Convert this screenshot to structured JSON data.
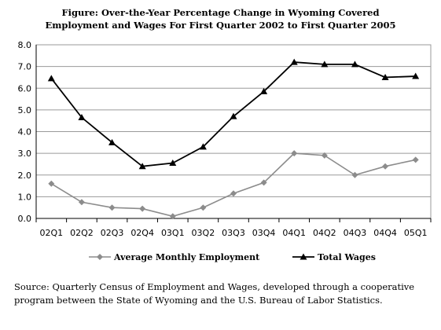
{
  "title_lines": [
    "Figure: Over-the-Year Percentage Change in Wyoming Covered",
    "Employment and Wages For First Quarter 2002 to First Quarter 2005"
  ],
  "source_text": "Source: Quarterly Census of Employment and Wages, developed through a cooperative program between the State of Wyoming and the U.S. Bureau of Labor Statistics.",
  "chart_data": {
    "type": "line",
    "title": "Figure: Over-the-Year Percentage Change in Wyoming Covered Employment and Wages For First Quarter 2002 to First Quarter 2005",
    "categories": [
      "02Q1",
      "02Q2",
      "02Q3",
      "02Q4",
      "03Q1",
      "03Q2",
      "03Q3",
      "03Q4",
      "04Q1",
      "04Q2",
      "04Q3",
      "04Q4",
      "05Q1"
    ],
    "ylim": [
      0,
      8
    ],
    "yticks": [
      "0.0",
      "1.0",
      "2.0",
      "3.0",
      "4.0",
      "5.0",
      "6.0",
      "7.0",
      "8.0"
    ],
    "grid": true,
    "legend_position": "bottom",
    "series": [
      {
        "name": "Average Monthly Employment",
        "color": "#8c8c8c",
        "marker": "diamond",
        "values": [
          1.6,
          0.75,
          0.5,
          0.45,
          0.1,
          0.5,
          1.15,
          1.65,
          3.0,
          2.9,
          2.0,
          2.4,
          2.7
        ]
      },
      {
        "name": "Total Wages",
        "color": "#000000",
        "marker": "triangle",
        "values": [
          6.45,
          4.65,
          3.5,
          2.4,
          2.55,
          3.3,
          4.7,
          5.85,
          7.2,
          7.1,
          7.1,
          6.5,
          6.55
        ]
      }
    ]
  }
}
